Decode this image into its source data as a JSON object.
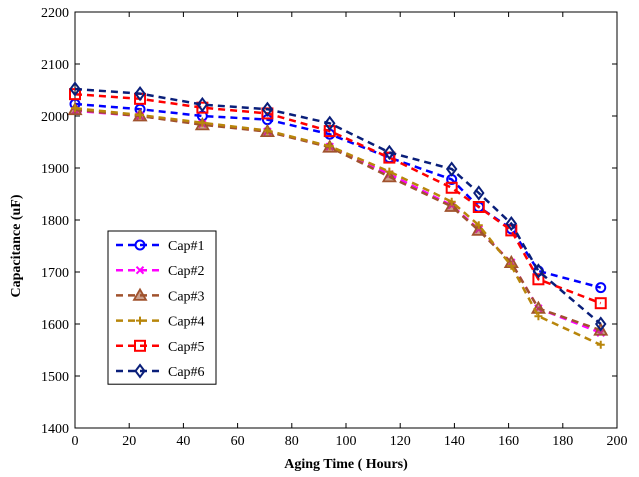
{
  "chart_data": {
    "type": "line",
    "xlabel": "Aging Time ( Hours)",
    "ylabel": "Capacitance (uF)",
    "xlim": [
      0,
      200
    ],
    "ylim": [
      1400,
      2200
    ],
    "xticks": [
      0,
      20,
      40,
      60,
      80,
      100,
      120,
      140,
      160,
      180,
      200
    ],
    "yticks": [
      1400,
      1500,
      1600,
      1700,
      1800,
      1900,
      2000,
      2100,
      2200
    ],
    "grid": false,
    "legend_position": "lower-left",
    "series": [
      {
        "name": "Cap#1",
        "color": "#0000ff",
        "marker": "circle",
        "x": [
          0,
          24,
          47,
          71,
          94,
          116,
          139,
          149,
          161,
          171,
          194
        ],
        "y": [
          2023,
          2013,
          2000,
          1993,
          1965,
          1920,
          1878,
          1825,
          1783,
          1702,
          1670
        ]
      },
      {
        "name": "Cap#2",
        "color": "#ff00ff",
        "marker": "x",
        "x": [
          0,
          24,
          47,
          71,
          94,
          116,
          139,
          149,
          161,
          171,
          194
        ],
        "y": [
          2010,
          2000,
          1985,
          1970,
          1941,
          1888,
          1828,
          1782,
          1718,
          1630,
          1583
        ]
      },
      {
        "name": "Cap#3",
        "color": "#a0522d",
        "marker": "triangle",
        "x": [
          0,
          24,
          47,
          71,
          94,
          116,
          139,
          149,
          161,
          171,
          194
        ],
        "y": [
          2012,
          2000,
          1983,
          1970,
          1940,
          1883,
          1826,
          1780,
          1718,
          1630,
          1588
        ]
      },
      {
        "name": "Cap#4",
        "color": "#b8860b",
        "marker": "plus",
        "x": [
          0,
          24,
          47,
          71,
          94,
          116,
          139,
          149,
          161,
          171,
          194
        ],
        "y": [
          2015,
          2002,
          1987,
          1972,
          1942,
          1893,
          1835,
          1790,
          1712,
          1615,
          1560
        ]
      },
      {
        "name": "Cap#5",
        "color": "#ff0000",
        "marker": "square",
        "x": [
          0,
          24,
          47,
          71,
          94,
          116,
          139,
          149,
          161,
          171,
          194
        ],
        "y": [
          2042,
          2033,
          2016,
          2005,
          1971,
          1920,
          1862,
          1825,
          1780,
          1686,
          1640
        ]
      },
      {
        "name": "Cap#6",
        "color": "#0a1f7a",
        "marker": "diamond",
        "x": [
          0,
          24,
          47,
          71,
          94,
          116,
          139,
          149,
          161,
          171,
          194
        ],
        "y": [
          2052,
          2043,
          2022,
          2013,
          1986,
          1930,
          1898,
          1852,
          1793,
          1702,
          1600
        ]
      }
    ]
  }
}
